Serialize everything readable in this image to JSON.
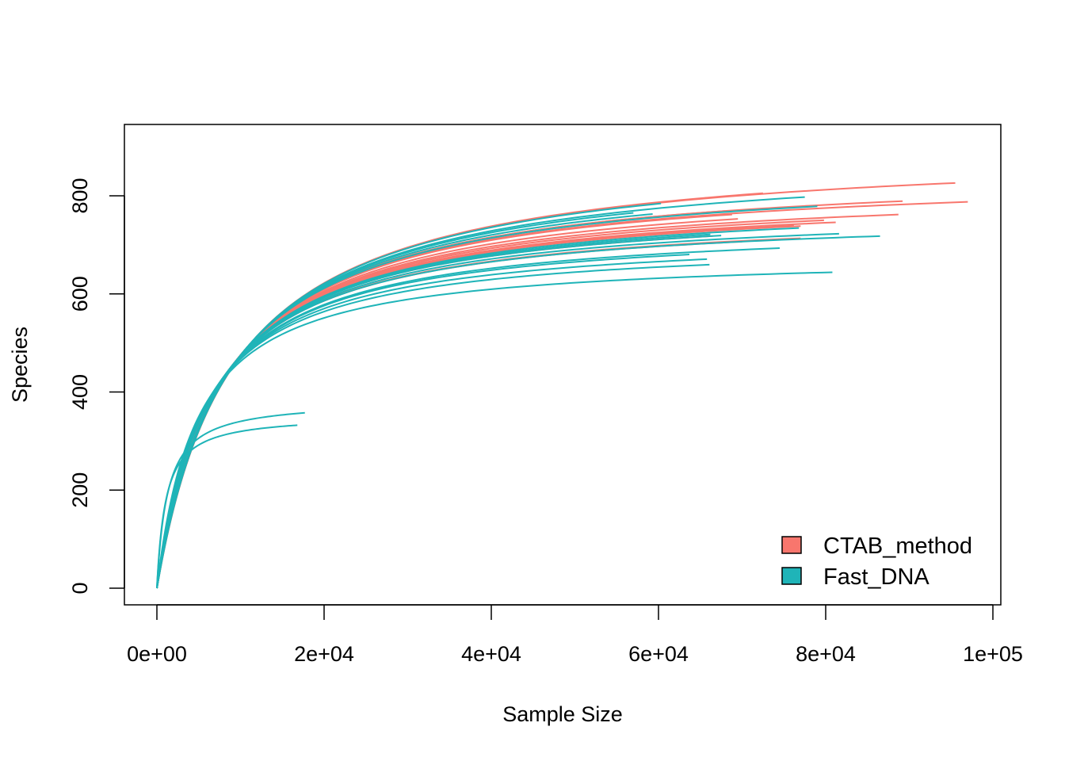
{
  "chart_data": {
    "type": "line",
    "title": "",
    "xlabel": "Sample Size",
    "ylabel": "Species",
    "xlim": [
      0,
      100000
    ],
    "ylim": [
      0,
      900
    ],
    "x_ticks": [
      0,
      20000,
      40000,
      60000,
      80000,
      100000
    ],
    "x_tick_labels": [
      "0e+00",
      "2e+04",
      "4e+04",
      "6e+04",
      "8e+04",
      "1e+05"
    ],
    "y_ticks": [
      0,
      200,
      400,
      600,
      800
    ],
    "y_tick_labels": [
      "0",
      "200",
      "400",
      "600",
      "800"
    ],
    "grid": false,
    "legend": {
      "position": "bottom-right",
      "entries": [
        {
          "name": "CTAB_method",
          "color": "#F8766D"
        },
        {
          "name": "Fast_DNA",
          "color": "#1FB4B8"
        }
      ]
    },
    "series": [
      {
        "group": "CTAB_method",
        "asymptote": 905,
        "max_sample": 95500
      },
      {
        "group": "CTAB_method",
        "asymptote": 907,
        "max_sample": 72500
      },
      {
        "group": "CTAB_method",
        "asymptote": 861,
        "max_sample": 89200
      },
      {
        "group": "CTAB_method",
        "asymptote": 852,
        "max_sample": 97000
      },
      {
        "group": "CTAB_method",
        "asymptote": 861,
        "max_sample": 68000
      },
      {
        "group": "CTAB_method",
        "asymptote": 849,
        "max_sample": 68800
      },
      {
        "group": "CTAB_method",
        "asymptote": 835,
        "max_sample": 69500
      },
      {
        "group": "CTAB_method",
        "asymptote": 825,
        "max_sample": 88700
      },
      {
        "group": "CTAB_method",
        "asymptote": 818,
        "max_sample": 79800
      },
      {
        "group": "CTAB_method",
        "asymptote": 811,
        "max_sample": 81200
      },
      {
        "group": "CTAB_method",
        "asymptote": 807,
        "max_sample": 76200
      },
      {
        "group": "CTAB_method",
        "asymptote": 805,
        "max_sample": 77000
      },
      {
        "group": "CTAB_method",
        "asymptote": 790,
        "max_sample": 66500
      },
      {
        "group": "CTAB_method",
        "asymptote": 772,
        "max_sample": 77000
      },
      {
        "group": "CTAB_method",
        "asymptote": 770,
        "max_sample": 70000
      },
      {
        "group": "Fast_DNA",
        "asymptote": 902,
        "max_sample": 60300
      },
      {
        "group": "Fast_DNA",
        "asymptote": 887,
        "max_sample": 77500
      },
      {
        "group": "Fast_DNA",
        "asymptote": 880,
        "max_sample": 57000
      },
      {
        "group": "Fast_DNA",
        "asymptote": 870,
        "max_sample": 59300
      },
      {
        "group": "Fast_DNA",
        "asymptote": 858,
        "max_sample": 79000
      },
      {
        "group": "Fast_DNA",
        "asymptote": 800,
        "max_sample": 76800
      },
      {
        "group": "Fast_DNA",
        "asymptote": 795,
        "max_sample": 66200
      },
      {
        "group": "Fast_DNA",
        "asymptote": 790,
        "max_sample": 67500
      },
      {
        "group": "Fast_DNA",
        "asymptote": 780,
        "max_sample": 81600
      },
      {
        "group": "Fast_DNA",
        "asymptote": 770,
        "max_sample": 86500
      },
      {
        "group": "Fast_DNA",
        "asymptote": 748,
        "max_sample": 74500
      },
      {
        "group": "Fast_DNA",
        "asymptote": 742,
        "max_sample": 63700
      },
      {
        "group": "Fast_DNA",
        "asymptote": 727,
        "max_sample": 65800
      },
      {
        "group": "Fast_DNA",
        "asymptote": 712,
        "max_sample": 66100
      },
      {
        "group": "Fast_DNA",
        "asymptote": 682,
        "max_sample": 80800
      },
      {
        "group": "Fast_DNA",
        "asymptote": 383,
        "max_sample": 17700
      },
      {
        "group": "Fast_DNA",
        "asymptote": 353,
        "max_sample": 16800
      }
    ]
  }
}
